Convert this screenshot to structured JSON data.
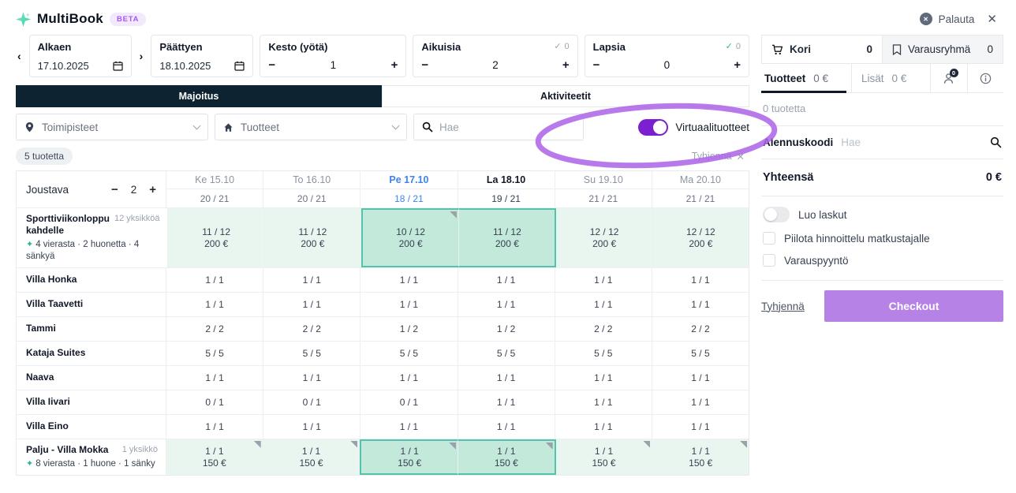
{
  "colors": {
    "accent_purple": "#7b1fd1",
    "checkout_purple": "#b682e6",
    "annotation_purple": "#ab63e8",
    "active_tab_navy": "#0e2331",
    "mint": "#e9f5ef",
    "mint_selected": "#c3e9da",
    "teal_border": "#54c3ab",
    "date_blue": "#3b82f6"
  },
  "glyphs": {
    "minus": "−",
    "plus": "+",
    "prev": "‹",
    "next": "›",
    "check": "✓",
    "sparkle": "✦",
    "close": "✕",
    "reset_x": "✕"
  },
  "header": {
    "app_name": "MultiBook",
    "beta": "BETA",
    "reset": "Palauta"
  },
  "filters": {
    "start": {
      "label": "Alkaen",
      "value": "17.10.2025"
    },
    "end": {
      "label": "Päättyen",
      "value": "18.10.2025"
    },
    "nights": {
      "label": "Kesto (yötä)",
      "value": "1"
    },
    "adults": {
      "label": "Aikuisia",
      "value": "2",
      "badge": "0"
    },
    "children": {
      "label": "Lapsia",
      "value": "0",
      "badge": "0"
    }
  },
  "tabs": {
    "accommodation": "Majoitus",
    "activities": "Aktiviteetit"
  },
  "toolbar": {
    "locations": "Toimipisteet",
    "products": "Tuotteet",
    "search_placeholder": "Hae",
    "virtual_products": "Virtuaalituotteet",
    "results_count": "5 tuotetta",
    "clear": "Tyhjennä"
  },
  "grid": {
    "flexible": {
      "label": "Joustava",
      "value": "2"
    },
    "columns": [
      {
        "day": "Ke 15.10",
        "count": "20 / 21"
      },
      {
        "day": "To 16.10",
        "count": "20 / 21"
      },
      {
        "day": "Pe 17.10",
        "count": "18 / 21",
        "highlight": "start"
      },
      {
        "day": "La 18.10",
        "count": "19 / 21",
        "highlight": "end"
      },
      {
        "day": "Su 19.10",
        "count": "21 / 21"
      },
      {
        "day": "Ma 20.10",
        "count": "21 / 21"
      }
    ],
    "rows": [
      {
        "name": "Sporttiviikonloppu kahdelle",
        "units": "12 yksikköä",
        "details": "4 vierasta · 2 huonetta · 4 sänkyä",
        "cells": [
          {
            "avail": "11 / 12",
            "price": "200 €",
            "state": "avail"
          },
          {
            "avail": "11 / 12",
            "price": "200 €",
            "state": "avail"
          },
          {
            "avail": "10 / 12",
            "price": "200 €",
            "state": "sel",
            "edge": "first",
            "flag": true
          },
          {
            "avail": "11 / 12",
            "price": "200 €",
            "state": "sel",
            "edge": "last"
          },
          {
            "avail": "12 / 12",
            "price": "200 €",
            "state": "avail"
          },
          {
            "avail": "12 / 12",
            "price": "200 €",
            "state": "avail"
          }
        ]
      },
      {
        "name": "Villa Honka",
        "cells": [
          {
            "avail": "1 / 1"
          },
          {
            "avail": "1 / 1"
          },
          {
            "avail": "1 / 1"
          },
          {
            "avail": "1 / 1"
          },
          {
            "avail": "1 / 1"
          },
          {
            "avail": "1 / 1"
          }
        ]
      },
      {
        "name": "Villa Taavetti",
        "cells": [
          {
            "avail": "1 / 1"
          },
          {
            "avail": "1 / 1"
          },
          {
            "avail": "1 / 1"
          },
          {
            "avail": "1 / 1"
          },
          {
            "avail": "1 / 1"
          },
          {
            "avail": "1 / 1"
          }
        ]
      },
      {
        "name": "Tammi",
        "cells": [
          {
            "avail": "2 / 2"
          },
          {
            "avail": "2 / 2"
          },
          {
            "avail": "1 / 2"
          },
          {
            "avail": "1 / 2"
          },
          {
            "avail": "2 / 2"
          },
          {
            "avail": "2 / 2"
          }
        ]
      },
      {
        "name": "Kataja Suites",
        "cells": [
          {
            "avail": "5 / 5"
          },
          {
            "avail": "5 / 5"
          },
          {
            "avail": "5 / 5"
          },
          {
            "avail": "5 / 5"
          },
          {
            "avail": "5 / 5"
          },
          {
            "avail": "5 / 5"
          }
        ]
      },
      {
        "name": "Naava",
        "cells": [
          {
            "avail": "1 / 1"
          },
          {
            "avail": "1 / 1"
          },
          {
            "avail": "1 / 1"
          },
          {
            "avail": "1 / 1"
          },
          {
            "avail": "1 / 1"
          },
          {
            "avail": "1 / 1"
          }
        ]
      },
      {
        "name": "Villa Iivari",
        "cells": [
          {
            "avail": "0 / 1"
          },
          {
            "avail": "0 / 1"
          },
          {
            "avail": "0 / 1"
          },
          {
            "avail": "1 / 1"
          },
          {
            "avail": "1 / 1"
          },
          {
            "avail": "1 / 1"
          }
        ]
      },
      {
        "name": "Villa Eino",
        "cells": [
          {
            "avail": "1 / 1"
          },
          {
            "avail": "1 / 1"
          },
          {
            "avail": "1 / 1"
          },
          {
            "avail": "1 / 1"
          },
          {
            "avail": "1 / 1"
          },
          {
            "avail": "1 / 1"
          }
        ]
      },
      {
        "name": "Palju - Villa Mokka",
        "units": "1 yksikkö",
        "details": "8 vierasta · 1 huone · 1 sänky",
        "cells": [
          {
            "avail": "1 / 1",
            "price": "150 €",
            "state": "avail",
            "flag": true
          },
          {
            "avail": "1 / 1",
            "price": "150 €",
            "state": "avail",
            "flag": true
          },
          {
            "avail": "1 / 1",
            "price": "150 €",
            "state": "sel",
            "edge": "first",
            "flag": true
          },
          {
            "avail": "1 / 1",
            "price": "150 €",
            "state": "sel",
            "edge": "last",
            "flag": true
          },
          {
            "avail": "1 / 1",
            "price": "150 €",
            "state": "avail",
            "flag": true
          },
          {
            "avail": "1 / 1",
            "price": "150 €",
            "state": "avail",
            "flag": true
          }
        ]
      }
    ]
  },
  "cart": {
    "tabs": [
      {
        "label": "Kori",
        "count": "0"
      },
      {
        "label": "Varausryhmä",
        "count": "0"
      }
    ],
    "subtabs": [
      {
        "label": "Tuotteet",
        "value": "0 €"
      },
      {
        "label": "Lisät",
        "value": "0 €"
      }
    ],
    "traveler_badge": "0",
    "empty_text": "0 tuotetta",
    "discount": {
      "label": "Alennuskoodi",
      "placeholder": "Hae"
    },
    "total": {
      "label": "Yhteensä",
      "value": "0 €"
    },
    "options": [
      {
        "type": "toggle",
        "label": "Luo laskut",
        "on": false
      },
      {
        "type": "checkbox",
        "label": "Piilota hinnoittelu matkustajalle",
        "checked": false
      },
      {
        "type": "checkbox",
        "label": "Varauspyyntö",
        "checked": false
      }
    ],
    "clear_label": "Tyhjennä",
    "checkout_label": "Checkout"
  },
  "annotation": {
    "shape": "hand-drawn-ellipse",
    "target": "Virtuaalituotteet toggle",
    "color": "#ab63e8"
  }
}
